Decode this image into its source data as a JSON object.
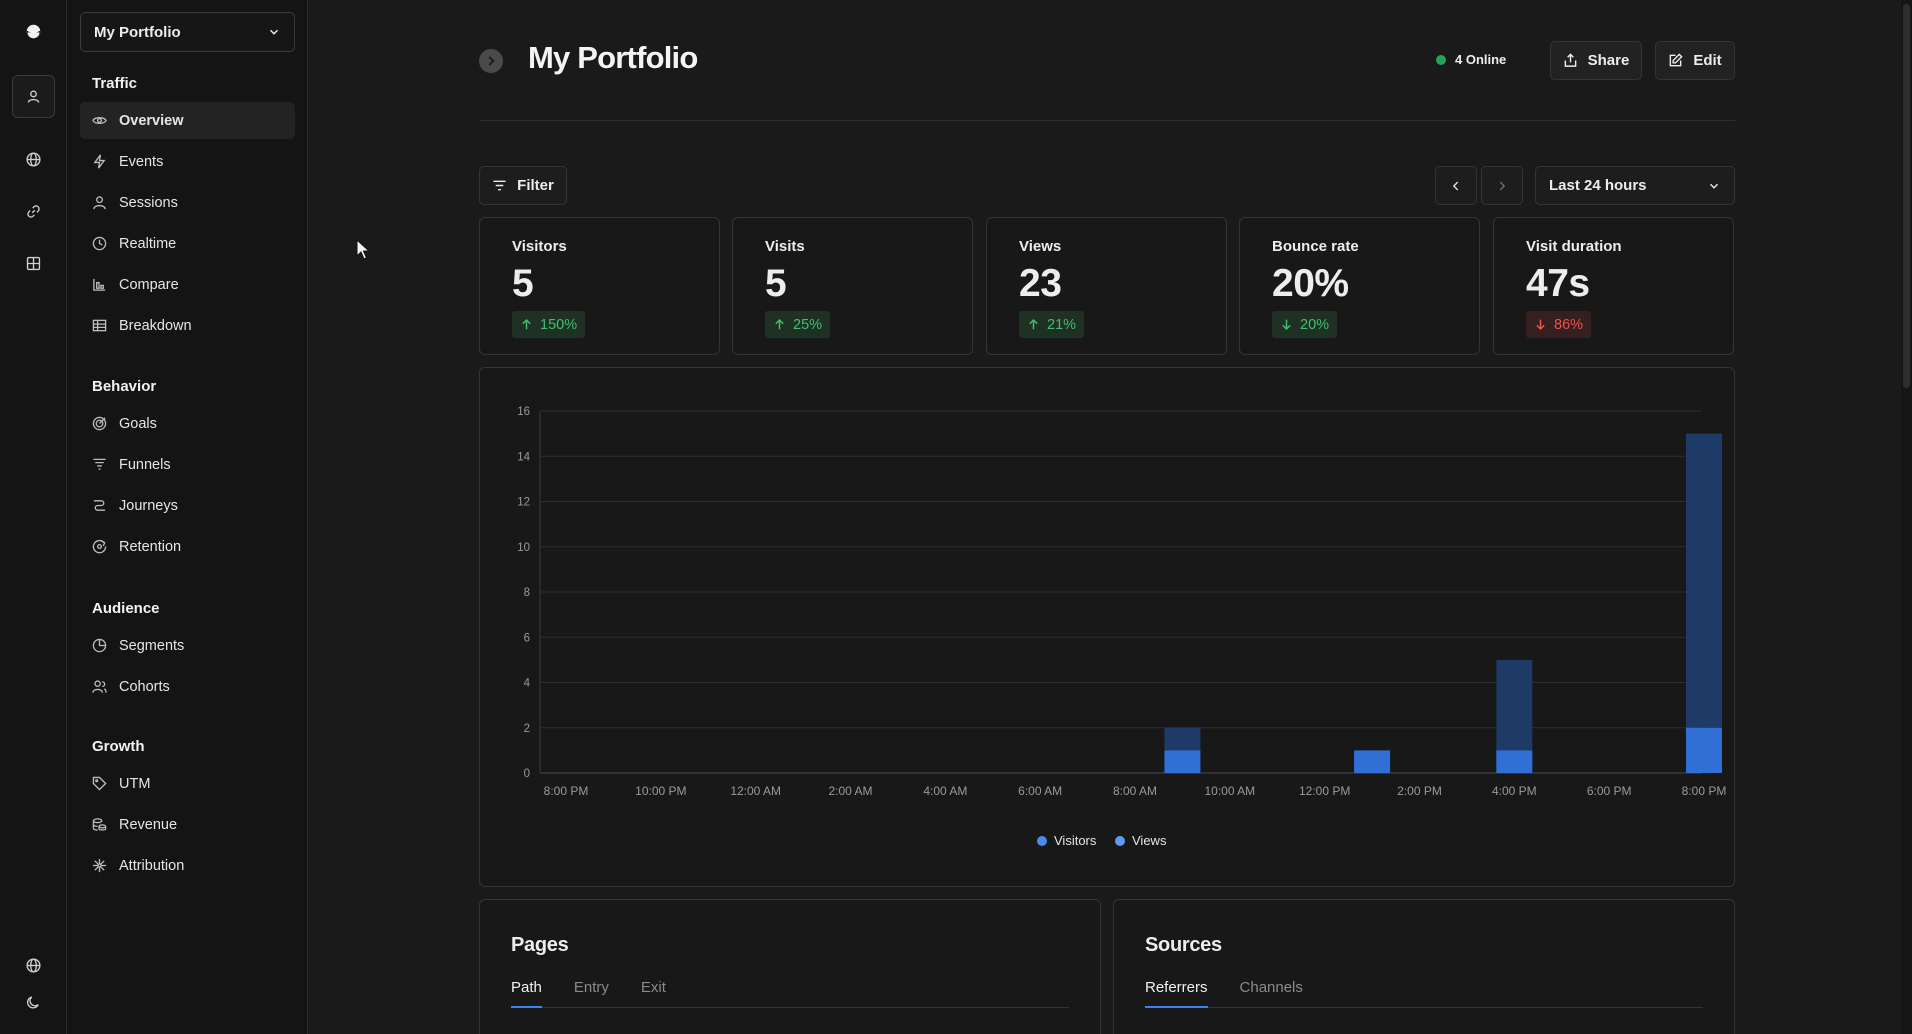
{
  "site_selector": {
    "label": "My Portfolio"
  },
  "sidebar": {
    "sections": [
      {
        "title": "Traffic",
        "items": [
          {
            "label": "Overview",
            "icon": "eye-icon",
            "active": true
          },
          {
            "label": "Events",
            "icon": "lightning-icon"
          },
          {
            "label": "Sessions",
            "icon": "user-icon"
          },
          {
            "label": "Realtime",
            "icon": "clock-icon"
          },
          {
            "label": "Compare",
            "icon": "bar-compare-icon"
          },
          {
            "label": "Breakdown",
            "icon": "table-icon"
          }
        ]
      },
      {
        "title": "Behavior",
        "items": [
          {
            "label": "Goals",
            "icon": "target-icon"
          },
          {
            "label": "Funnels",
            "icon": "funnel-icon"
          },
          {
            "label": "Journeys",
            "icon": "journey-icon"
          },
          {
            "label": "Retention",
            "icon": "retention-icon"
          }
        ]
      },
      {
        "title": "Audience",
        "items": [
          {
            "label": "Segments",
            "icon": "pie-icon"
          },
          {
            "label": "Cohorts",
            "icon": "users-icon"
          }
        ]
      },
      {
        "title": "Growth",
        "items": [
          {
            "label": "UTM",
            "icon": "tag-icon"
          },
          {
            "label": "Revenue",
            "icon": "coins-icon"
          },
          {
            "label": "Attribution",
            "icon": "network-icon"
          }
        ]
      }
    ]
  },
  "header": {
    "title": "My Portfolio",
    "online": "4 Online",
    "share_label": "Share",
    "edit_label": "Edit"
  },
  "toolbar": {
    "filter_label": "Filter",
    "range_label": "Last 24 hours"
  },
  "metrics": [
    {
      "label": "Visitors",
      "value": "5",
      "change": "150%",
      "direction": "up"
    },
    {
      "label": "Visits",
      "value": "5",
      "change": "25%",
      "direction": "up"
    },
    {
      "label": "Views",
      "value": "23",
      "change": "21%",
      "direction": "up"
    },
    {
      "label": "Bounce rate",
      "value": "20%",
      "change": "20%",
      "direction": "down-good"
    },
    {
      "label": "Visit duration",
      "value": "47s",
      "change": "86%",
      "direction": "down-bad"
    }
  ],
  "chart_data": {
    "type": "bar",
    "stacked": true,
    "x_tick_labels": [
      "8:00 PM",
      "10:00 PM",
      "12:00 AM",
      "2:00 AM",
      "4:00 AM",
      "6:00 AM",
      "8:00 AM",
      "10:00 AM",
      "12:00 PM",
      "2:00 PM",
      "4:00 PM",
      "6:00 PM",
      "8:00 PM"
    ],
    "ylim": [
      0,
      16
    ],
    "y_ticks": [
      0,
      2,
      4,
      6,
      8,
      10,
      12,
      14,
      16
    ],
    "grid": true,
    "legend_position": "bottom-center",
    "series": [
      {
        "name": "Visitors",
        "color": "#2f6fd6",
        "points": [
          {
            "hour": "9:00 AM",
            "value": 1
          },
          {
            "hour": "1:00 PM",
            "value": 1
          },
          {
            "hour": "4:00 PM",
            "value": 1
          },
          {
            "hour": "8:00 PM",
            "value": 2
          }
        ]
      },
      {
        "name": "Views",
        "color": "#1e3a66",
        "points": [
          {
            "hour": "9:00 AM",
            "value": 2
          },
          {
            "hour": "1:00 PM",
            "value": 1
          },
          {
            "hour": "4:00 PM",
            "value": 5
          },
          {
            "hour": "8:00 PM",
            "value": 15
          }
        ]
      }
    ]
  },
  "pages_panel": {
    "title": "Pages",
    "tabs": [
      "Path",
      "Entry",
      "Exit"
    ],
    "active_tab": "Path"
  },
  "sources_panel": {
    "title": "Sources",
    "tabs": [
      "Referrers",
      "Channels"
    ],
    "active_tab": "Referrers"
  }
}
